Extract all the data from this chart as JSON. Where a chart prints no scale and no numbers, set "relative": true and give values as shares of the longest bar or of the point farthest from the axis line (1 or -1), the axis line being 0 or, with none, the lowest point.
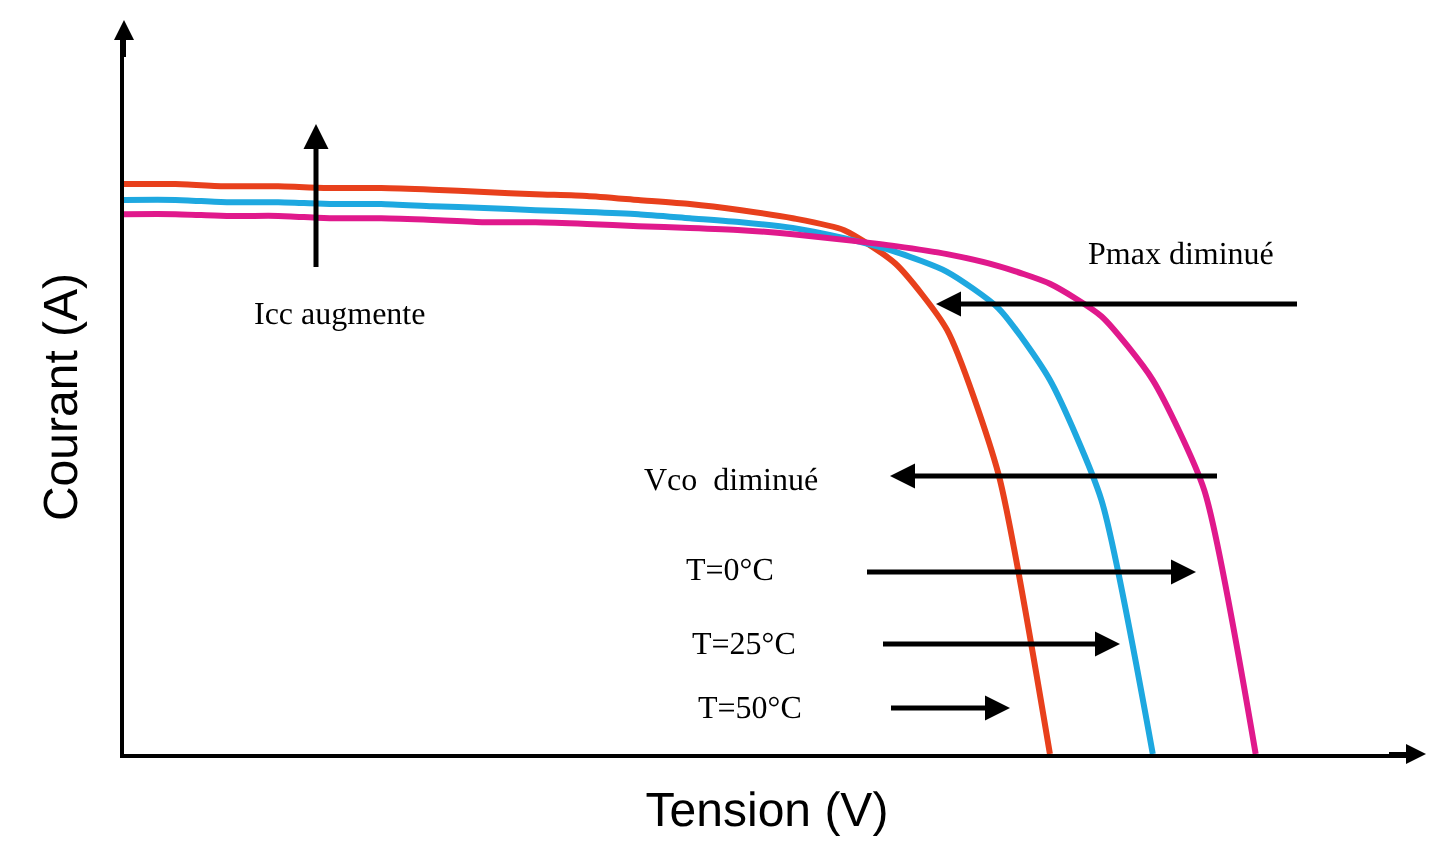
{
  "chart_data": {
    "type": "line",
    "relative": true,
    "xlabel": "Tension (V)",
    "ylabel": "Courant (A)",
    "categories": [
      null,
      null,
      null,
      null,
      null,
      null,
      null,
      null,
      null,
      null,
      null,
      null,
      null,
      null,
      null,
      null,
      null,
      null,
      null,
      null,
      null,
      null,
      null
    ],
    "series": [
      {
        "color": "#e8401c",
        "values": [
          1,
          1,
          0.996,
          0.996,
          0.993,
          0.993,
          0.99,
          0.986,
          0.982,
          0.979,
          0.972,
          0.965,
          0.954,
          0.94,
          0.919,
          0.86,
          0.744,
          0.491,
          0,
          null,
          null,
          null,
          null
        ]
      },
      {
        "color": "#1ea8e0",
        "values": [
          0.972,
          0.972,
          0.968,
          0.968,
          0.965,
          0.965,
          0.961,
          0.958,
          0.954,
          0.951,
          0.947,
          0.94,
          0.933,
          0.923,
          0.905,
          0.881,
          0.846,
          0.782,
          0.656,
          0.446,
          0,
          null,
          null
        ]
      },
      {
        "color": "#e0198c",
        "values": [
          0.947,
          0.947,
          0.944,
          0.944,
          0.94,
          0.94,
          0.937,
          0.933,
          0.933,
          0.93,
          0.926,
          0.923,
          0.919,
          0.912,
          0.902,
          0.891,
          0.877,
          0.856,
          0.825,
          0.768,
          0.656,
          0.463,
          0
        ]
      }
    ],
    "annotations": [
      "Icc augmente",
      "Pmax diminué",
      "Vco  diminué",
      "T=0°C",
      "T=25°C",
      "T=50°C"
    ]
  }
}
